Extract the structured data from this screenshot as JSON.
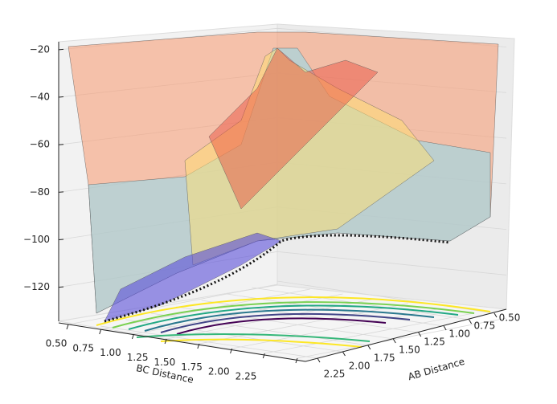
{
  "chart_data": {
    "type": "surface3d",
    "xlabel": "AB Distance",
    "ylabel": "BC Distance",
    "xticks": [
      {
        "value": 0.5,
        "label": "0.50"
      },
      {
        "value": 0.75,
        "label": "0.75"
      },
      {
        "value": 1.0,
        "label": "1.00"
      },
      {
        "value": 1.25,
        "label": "1.25"
      },
      {
        "value": 1.5,
        "label": "1.50"
      },
      {
        "value": 1.75,
        "label": "1.75"
      },
      {
        "value": 2.0,
        "label": "2.00"
      },
      {
        "value": 2.25,
        "label": "2.25"
      }
    ],
    "yticks": [
      {
        "value": 0.5,
        "label": "0.50"
      },
      {
        "value": 0.75,
        "label": "0.75"
      },
      {
        "value": 1.0,
        "label": "1.00"
      },
      {
        "value": 1.25,
        "label": "1.25"
      },
      {
        "value": 1.5,
        "label": "1.50"
      },
      {
        "value": 1.75,
        "label": "1.75"
      },
      {
        "value": 2.0,
        "label": "2.00"
      },
      {
        "value": 2.25,
        "label": "2.25"
      }
    ],
    "zticks": [
      {
        "value": -20,
        "label": "−20"
      },
      {
        "value": -40,
        "label": "−40"
      },
      {
        "value": -60,
        "label": "−60"
      },
      {
        "value": -80,
        "label": "−80"
      },
      {
        "value": -100,
        "label": "−100"
      },
      {
        "value": -120,
        "label": "−120"
      }
    ],
    "xlim": [
      0.5,
      2.25
    ],
    "ylim": [
      0.5,
      2.25
    ],
    "zlim": [
      -135,
      -18
    ],
    "grid": true
  }
}
